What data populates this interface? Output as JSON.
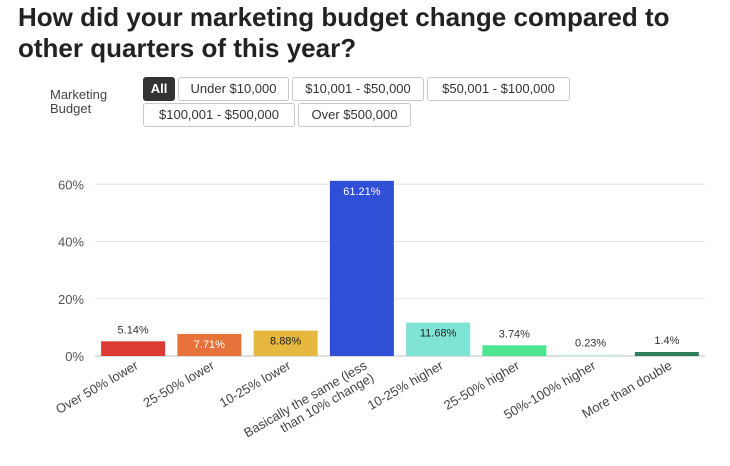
{
  "title": "How did your marketing budget change compared to other quarters of this year?",
  "filter": {
    "label_line1": "Marketing",
    "label_line2": "Budget",
    "options": [
      "All",
      "Under $10,000",
      "$10,001 - $50,000",
      "$50,001 - $100,000",
      "$100,001 - $500,000",
      "Over $500,000"
    ],
    "selected": "All"
  },
  "chart_data": {
    "type": "bar",
    "title": "",
    "xlabel": "",
    "ylabel": "",
    "ylim": [
      0,
      65
    ],
    "yticks": [
      0,
      20,
      40,
      60
    ],
    "ytick_labels": [
      "0%",
      "20%",
      "40%",
      "60%"
    ],
    "categories": [
      "Over 50% lower",
      "25-50% lower",
      "10-25% lower",
      "Basically the same (less than 10% change)",
      "10-25% higher",
      "25-50% higher",
      "50%-100% higher",
      "More than double"
    ],
    "category_lines": [
      [
        "Over 50% lower"
      ],
      [
        "25-50% lower"
      ],
      [
        "10-25% lower"
      ],
      [
        "Basically the same (less",
        "than 10% change)"
      ],
      [
        "10-25% higher"
      ],
      [
        "25-50% higher"
      ],
      [
        "50%-100% higher"
      ],
      [
        "More than double"
      ]
    ],
    "values": [
      5.14,
      7.71,
      8.88,
      61.21,
      11.68,
      3.74,
      0.23,
      1.4
    ],
    "value_labels": [
      "5.14%",
      "7.71%",
      "8.88%",
      "61.21%",
      "11.68%",
      "3.74%",
      "0.23%",
      "1.4%"
    ],
    "colors": [
      "#dc3b34",
      "#e8733a",
      "#e6b83f",
      "#2e4fd6",
      "#7fe3d6",
      "#4de58f",
      "#c7eedd",
      "#2f7d5a"
    ],
    "label_inside": [
      false,
      true,
      true,
      true,
      true,
      false,
      false,
      false
    ],
    "label_colors": [
      "#333333",
      "#ffffff",
      "#222222",
      "#ffffff",
      "#222222",
      "#333333",
      "#333333",
      "#333333"
    ]
  }
}
